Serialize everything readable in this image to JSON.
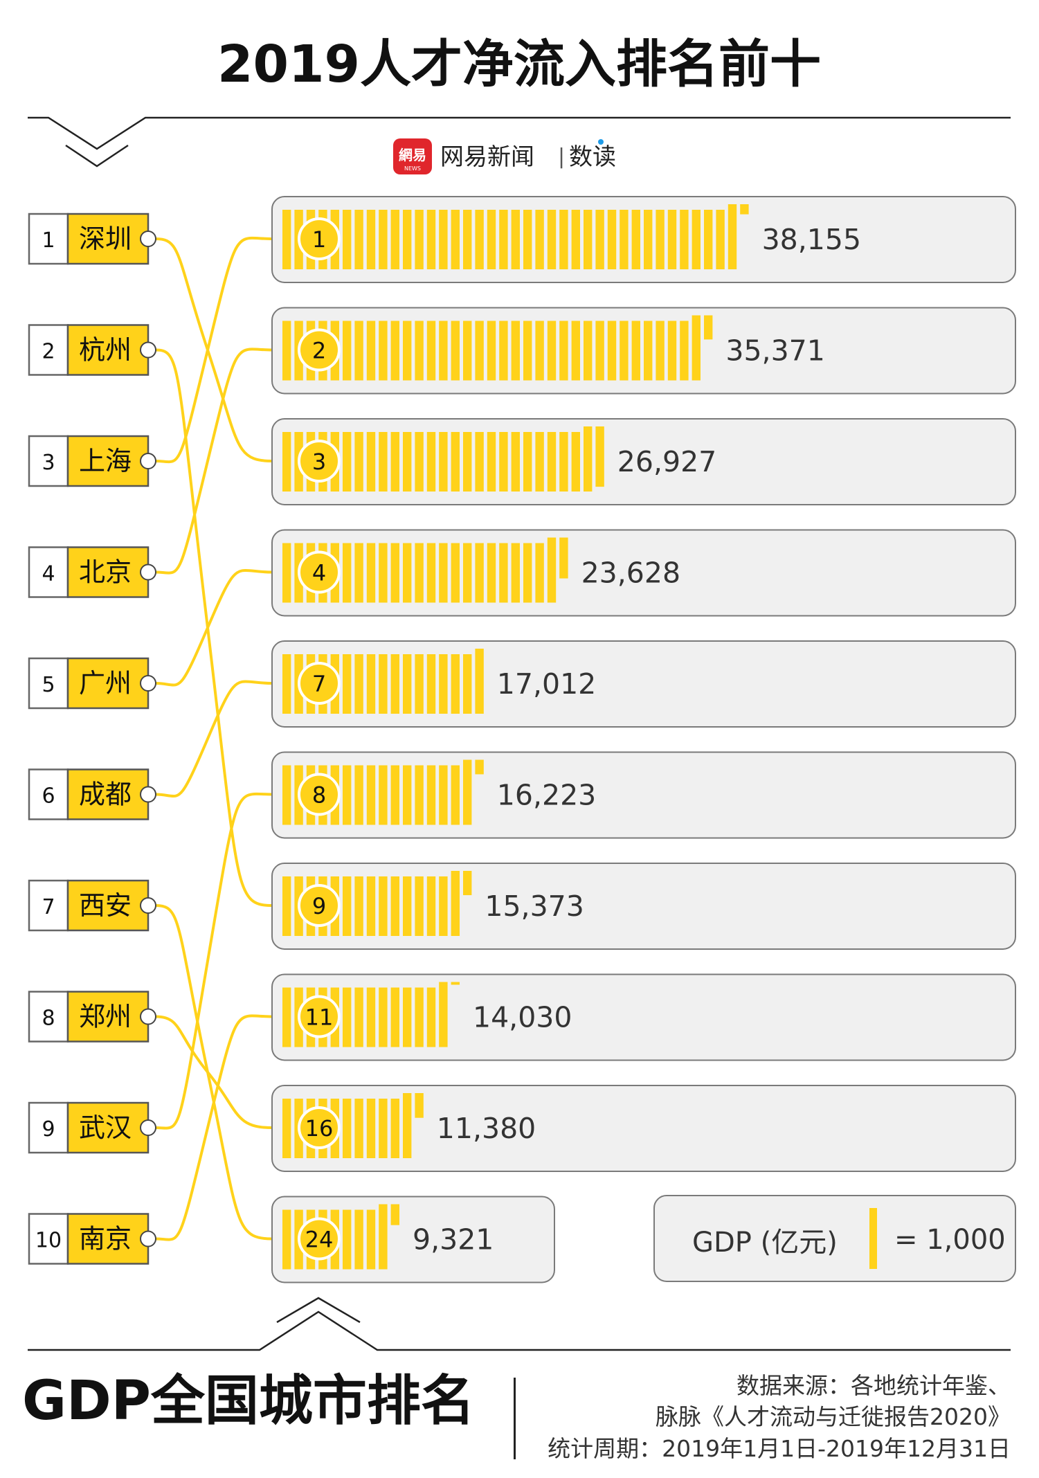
{
  "title": "2019人才净流入排名前十",
  "brand": {
    "logo_text": "網易",
    "logo_sub": "NEWS",
    "name": "网易新闻",
    "separator": "|",
    "section": "数读"
  },
  "footer": {
    "bottom_title": "GDP全国城市排名",
    "source_line1": "数据来源：各地统计年鉴、",
    "source_line2": "脉脉《人才流动与迁徙报告2020》",
    "period": "统计周期：2019年1月1日-2019年12月31日"
  },
  "legend": {
    "label": "GDP (亿元)",
    "unit_text": "= 1,000",
    "unit_value": 1000
  },
  "colors": {
    "yellow": "#FFD21A",
    "panel": "#F0F0F0",
    "panel_border": "#7A7A7A",
    "text": "#1A1A1A",
    "value_text": "#333333"
  },
  "chart_data": {
    "type": "bar",
    "title": "2019人才净流入排名前十",
    "left_column": "人才净流入排名",
    "right_column": "GDP全国城市排名",
    "talent_ranking": [
      {
        "rank": "1",
        "city": "深圳",
        "gdp_rank": 3
      },
      {
        "rank": "2",
        "city": "杭州",
        "gdp_rank": 9
      },
      {
        "rank": "3",
        "city": "上海",
        "gdp_rank": 1
      },
      {
        "rank": "4",
        "city": "北京",
        "gdp_rank": 2
      },
      {
        "rank": "5",
        "city": "广州",
        "gdp_rank": 4
      },
      {
        "rank": "6",
        "city": "成都",
        "gdp_rank": 7
      },
      {
        "rank": "7",
        "city": "西安",
        "gdp_rank": 24
      },
      {
        "rank": "8",
        "city": "郑州",
        "gdp_rank": 16
      },
      {
        "rank": "9",
        "city": "武汉",
        "gdp_rank": 8
      },
      {
        "rank": "10",
        "city": "南京",
        "gdp_rank": 11
      }
    ],
    "gdp_bars": [
      {
        "gdp_rank": "1",
        "gdp": 38155,
        "label": "38,155",
        "city": "上海"
      },
      {
        "gdp_rank": "2",
        "gdp": 35371,
        "label": "35,371",
        "city": "北京"
      },
      {
        "gdp_rank": "3",
        "gdp": 26927,
        "label": "26,927",
        "city": "深圳"
      },
      {
        "gdp_rank": "4",
        "gdp": 23628,
        "label": "23,628",
        "city": "广州"
      },
      {
        "gdp_rank": "7",
        "gdp": 17012,
        "label": "17,012",
        "city": "成都"
      },
      {
        "gdp_rank": "8",
        "gdp": 16223,
        "label": "16,223",
        "city": "武汉"
      },
      {
        "gdp_rank": "9",
        "gdp": 15373,
        "label": "15,373",
        "city": "杭州"
      },
      {
        "gdp_rank": "11",
        "gdp": 14030,
        "label": "14,030",
        "city": "南京"
      },
      {
        "gdp_rank": "16",
        "gdp": 11380,
        "label": "11,380",
        "city": "郑州"
      },
      {
        "gdp_rank": "24",
        "gdp": 9321,
        "label": "9,321",
        "city": "西安"
      }
    ]
  }
}
